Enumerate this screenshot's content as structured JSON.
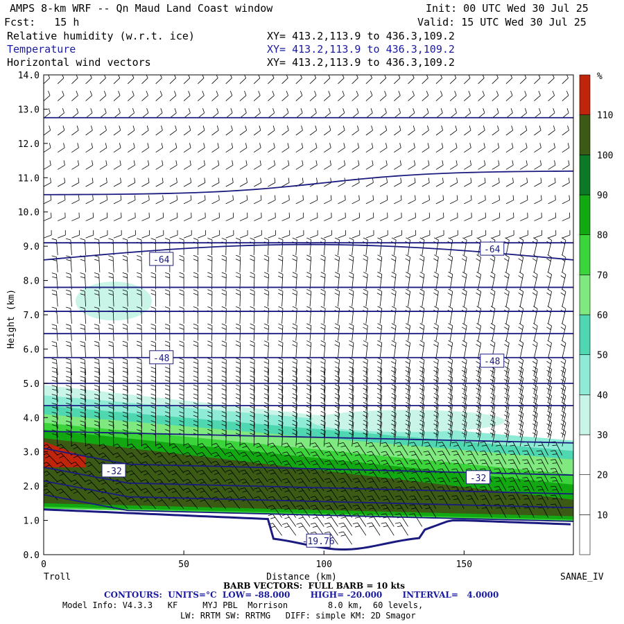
{
  "header": {
    "title": "AMPS 8-km WRF -- Qn Maud Land Coast window",
    "init": "Init: 00 UTC Wed 30 Jul 25",
    "fcst": "Fcst:   15 h",
    "valid": "Valid: 15 UTC Wed 30 Jul 25",
    "fields": [
      {
        "name": "Relative humidity (w.r.t. ice)",
        "xy": "XY= 413.2,113.9 to 436.3,109.2"
      },
      {
        "name": "Temperature",
        "xy": "XY= 413.2,113.9 to 436.3,109.2"
      },
      {
        "name": "Horizontal wind vectors",
        "xy": "XY= 413.2,113.9 to 436.3,109.2"
      }
    ]
  },
  "chart_data": {
    "type": "contour",
    "ylabel": "Height (km)",
    "xlabel": "Distance (km)",
    "x_ticks": [
      0,
      50,
      100,
      150
    ],
    "y_ticks": [
      "0.0",
      "1.0",
      "2.0",
      "3.0",
      "4.0",
      "5.0",
      "6.0",
      "7.0",
      "8.0",
      "9.0",
      "10.0",
      "11.0",
      "12.0",
      "13.0",
      "14.0"
    ],
    "xlim": [
      0,
      189
    ],
    "ylim": [
      0,
      14
    ],
    "left_endpoint": "Troll",
    "right_endpoint": "SANAE_IV",
    "colorbar": {
      "unit": "%",
      "levels": [
        10,
        20,
        30,
        40,
        50,
        60,
        70,
        80,
        90,
        100,
        110
      ],
      "colors": [
        "#ffffff",
        "#ffffff",
        "#ffffff",
        "#c8f5e8",
        "#8eebd5",
        "#4ed7b0",
        "#7fe87f",
        "#3bd43b",
        "#12a812",
        "#0c7a25",
        "#3b5a14",
        "#c0240a"
      ]
    },
    "temperature_labels": [
      {
        "text": "-64",
        "x": 42,
        "y": 8.62
      },
      {
        "text": "-64",
        "x": 160,
        "y": 8.92
      },
      {
        "text": "-48",
        "x": 42,
        "y": 5.75
      },
      {
        "text": "-48",
        "x": 160,
        "y": 5.65
      },
      {
        "text": "-32",
        "x": 25,
        "y": 2.45
      },
      {
        "text": "-32",
        "x": 155,
        "y": 2.25
      },
      {
        "text": "-19.76",
        "x": 98,
        "y": 0.4
      }
    ],
    "temperature_isotherm_heights_km": [
      1.35,
      1.75,
      2.15,
      2.7,
      3.6,
      4.35,
      5.0,
      5.75,
      6.45,
      7.1,
      7.8,
      8.6,
      9.1,
      10.5,
      12.75
    ]
  },
  "footer": {
    "barb": "BARB VECTORS:  FULL BARB = 10 kts",
    "contours": "CONTOURS:  UNITS=°C  LOW= -88.000       HIGH= -20.000       INTERVAL=   4.0000",
    "model": "Model Info: V4.3.3   KF     MYJ PBL  Morrison        8.0 km,  60 levels,",
    "model2": "LW: RRTM SW: RRTMG   DIFF: simple KM: 2D Smagor"
  }
}
